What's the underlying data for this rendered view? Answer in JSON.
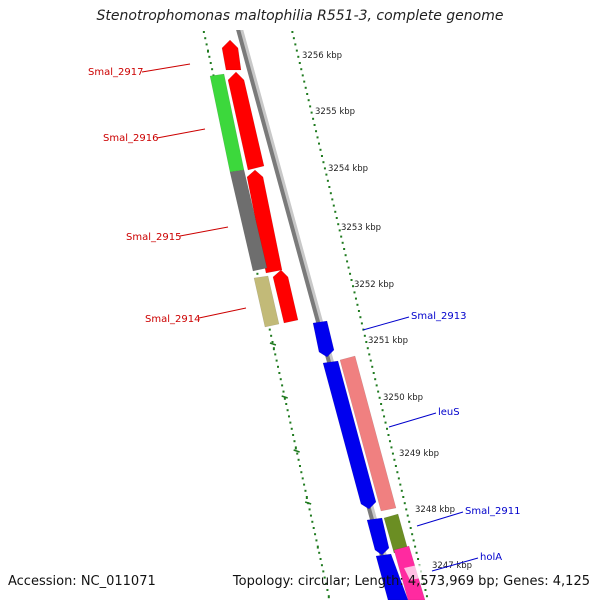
{
  "title": "Stenotrophomonas maltophilia R551-3, complete genome",
  "accession": "Accession: NC_011071",
  "topology": "Topology: circular; Length: 4,573,969 bp; Genes: 4,125",
  "colors": {
    "red": "#ff0000",
    "green": "#3cd83c",
    "gray": "#6e6e6e",
    "khaki": "#c2ba78",
    "blue": "#0000ee",
    "salmon": "#f08080",
    "olive": "#6b8e23",
    "pink": "#ff2aa0",
    "backbone": "#808080",
    "ticks": "#1f7a1f",
    "forward_label": "#cc0000",
    "reverse_label": "#0000cc"
  },
  "kbp_labels": [
    "3256 kbp",
    "3255 kbp",
    "3254 kbp",
    "3253 kbp",
    "3252 kbp",
    "3251 kbp",
    "3250 kbp",
    "3249 kbp",
    "3248 kbp",
    "3247 kbp"
  ],
  "gene_labels": [
    {
      "text": "Smal_2917",
      "strand": "forward"
    },
    {
      "text": "Smal_2916",
      "strand": "forward"
    },
    {
      "text": "Smal_2915",
      "strand": "forward"
    },
    {
      "text": "Smal_2914",
      "strand": "forward"
    },
    {
      "text": "Smal_2913",
      "strand": "reverse"
    },
    {
      "text": "leuS",
      "strand": "reverse"
    },
    {
      "text": "Smal_2911",
      "strand": "reverse"
    },
    {
      "text": "holA",
      "strand": "reverse"
    }
  ]
}
